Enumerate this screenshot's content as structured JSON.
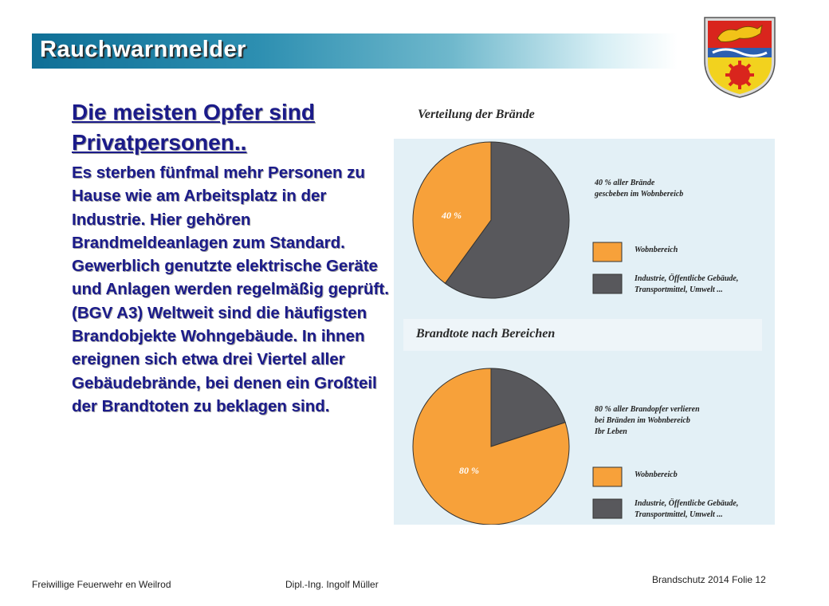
{
  "title": "Rauchwarnmelder",
  "heading": "Die meisten Opfer sind Privatpersonen..",
  "body": "Es sterben fünfmal mehr Personen zu Hause wie am Arbeitsplatz in der Industrie. Hier gehören Brandmeldeanlagen zum Standard. Gewerblich genutzte elektrische Geräte und Anlagen werden regelmäßig geprüft.(BGV A3) Weltweit sind die häufigsten Brandobjekte Wohngebäude. In ihnen ereignen sich etwa drei Viertel aller Gebäudebrände, bei denen ein Großteil der Brandtoten zu beklagen sind.",
  "footer": {
    "organization": "Freiwillige Feuerwehr en Weilrod",
    "author": "Dipl.-Ing. Ingolf Müller",
    "slide": "Brandschutz 2014 Folie 12"
  },
  "colors": {
    "orange": "#f7a13a",
    "gray": "#58585c"
  },
  "chart_data": [
    {
      "type": "pie",
      "title": "Verteilung der Brände",
      "slices": [
        {
          "label": "Wohnbereich",
          "value": 40,
          "color": "#f7a13a"
        },
        {
          "label": "Industrie, Öffentliche Gebäude, Transportmittel, Umwelt ...",
          "value": 60,
          "color": "#58585c"
        }
      ],
      "slice_label": "40 %",
      "annotation": [
        "40 % aller Brände",
        "gescbeben im Wobnbereicb"
      ],
      "legend": [
        "Wobnbereich",
        "Industrie, Öffentlicbe Gebäude,",
        "Transportmittel, Umwelt ..."
      ]
    },
    {
      "type": "pie",
      "title": "Brandtote nach Bereichen",
      "slices": [
        {
          "label": "Wohnbereich",
          "value": 80,
          "color": "#f7a13a"
        },
        {
          "label": "Industrie, Öffentliche Gebäude, Transportmittel, Umwelt ...",
          "value": 20,
          "color": "#58585c"
        }
      ],
      "slice_label": "80 %",
      "annotation": [
        "80 % aller Brandopfer verlieren",
        "bei Bränden im Wobnbereicb",
        "Ibr Leben"
      ],
      "legend": [
        "Wobnbereicb",
        "Industrie, Öffentlicbe Gebäude,",
        "Transportmittel, Umwelt ..."
      ]
    }
  ]
}
